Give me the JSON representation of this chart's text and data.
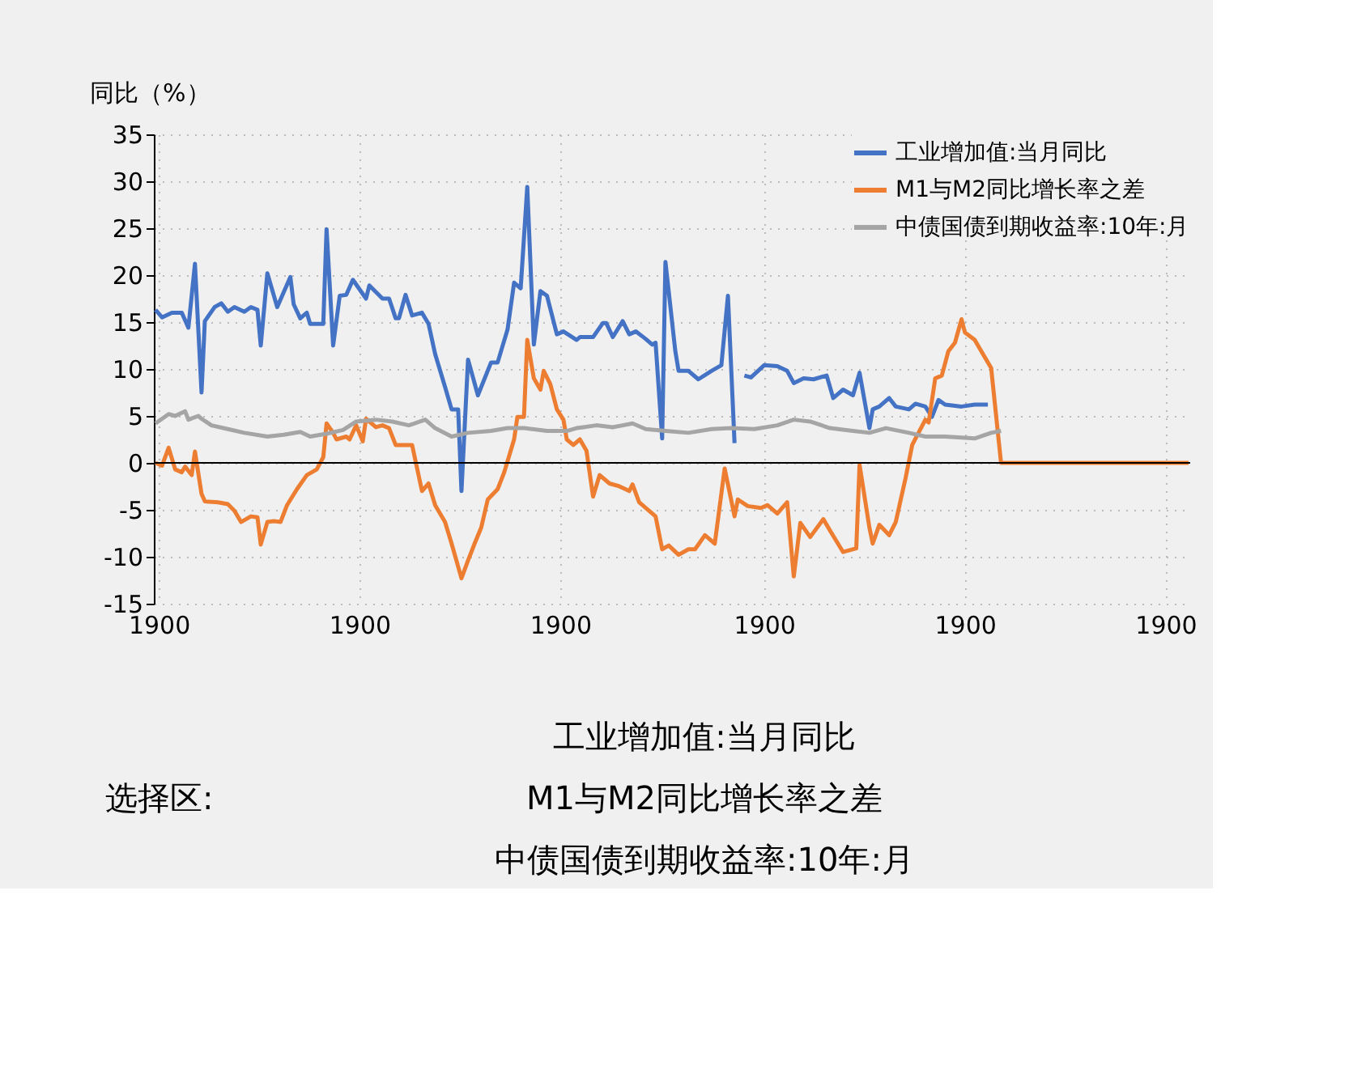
{
  "chart_data": {
    "type": "line",
    "ylabel": "同比（%）",
    "xlim": [
      "1899-12-30T12:00",
      "1900-11-10T12:00"
    ],
    "xticks": [
      {
        "value": "1900-01-01",
        "label": "1900"
      },
      {
        "value": "1900-03-03",
        "label": "1900"
      },
      {
        "value": "1900-05-03",
        "label": "1900"
      },
      {
        "value": "1900-07-04",
        "label": "1900"
      },
      {
        "value": "1900-09-03",
        "label": "1900"
      },
      {
        "value": "1900-11-03",
        "label": "1900"
      }
    ],
    "ylim": [
      -15,
      35
    ],
    "yticks": [
      -15,
      -10,
      -5,
      0,
      5,
      10,
      15,
      20,
      25,
      30,
      35
    ],
    "grid": true,
    "legend": "top right",
    "line_style": "solid",
    "marker": "none",
    "series": [
      {
        "name": "工业增加值:当月同比",
        "color": "#4472c4",
        "x": [
          "1899-12-31",
          "1900-01-02",
          "1900-01-05",
          "1900-01-08",
          "1900-01-10",
          "1900-01-12",
          "1900-01-14",
          "1900-01-15",
          "1900-01-18",
          "1900-01-20",
          "1900-01-22",
          "1900-01-24",
          "1900-01-27",
          "1900-01-29",
          "1900-01-31",
          "1900-02-01",
          "1900-02-03",
          "1900-02-06",
          "1900-02-10",
          "1900-02-11",
          "1900-02-13",
          "1900-02-15",
          "1900-02-16",
          "1900-02-20",
          "1900-02-21",
          "1900-02-23",
          "1900-02-25",
          "1900-02-27",
          "1900-03-01",
          "1900-03-05",
          "1900-03-06",
          "1900-03-10",
          "1900-03-12",
          "1900-03-14",
          "1900-03-15",
          "1900-03-17",
          "1900-03-19",
          "1900-03-22",
          "1900-03-24",
          "1900-03-26",
          "1900-03-29",
          "1900-03-31",
          "1900-04-02",
          "1900-04-03",
          "1900-04-05",
          "1900-04-08",
          "1900-04-12",
          "1900-04-14",
          "1900-04-17",
          "1900-04-19",
          "1900-04-21",
          "1900-04-23",
          "1900-04-25",
          "1900-04-27",
          "1900-04-29",
          "1900-05-02",
          "1900-05-04",
          "1900-05-08",
          "1900-05-09",
          "1900-05-13",
          "1900-05-16",
          "1900-05-17",
          "1900-05-19",
          "1900-05-22",
          "1900-05-24",
          "1900-05-26",
          "1900-05-29",
          "1900-05-31",
          "1900-06-01",
          "1900-06-03",
          "1900-06-04",
          "1900-06-07",
          "1900-06-08",
          "1900-06-11",
          "1900-06-14",
          "1900-06-18",
          "1900-06-21",
          "1900-06-23",
          "1900-06-25",
          "1900-06-26",
          "1900-06-28",
          "1900-06-30",
          "1900-07-04",
          "1900-07-08",
          "1900-07-11",
          "1900-07-13",
          "1900-07-16",
          "1900-07-19",
          "1900-07-23",
          "1900-07-25",
          "1900-07-28",
          "1900-07-31",
          "1900-08-02",
          "1900-08-05",
          "1900-08-06",
          "1900-08-08",
          "1900-08-11",
          "1900-08-13",
          "1900-08-17",
          "1900-08-19",
          "1900-08-22",
          "1900-08-24",
          "1900-08-26",
          "1900-08-28",
          "1900-09-02",
          "1900-09-06",
          "1900-09-10"
        ],
        "values": [
          16.3,
          15.5,
          16,
          16,
          14.4,
          21.2,
          7.5,
          15.1,
          16.6,
          17,
          16.1,
          16.6,
          16.1,
          16.6,
          16.3,
          12.5,
          20.2,
          16.6,
          19.8,
          16.9,
          15.4,
          16,
          14.8,
          14.8,
          24.9,
          12.5,
          17.8,
          17.9,
          19.5,
          17.5,
          18.9,
          17.5,
          17.5,
          15.4,
          15.4,
          17.9,
          15.7,
          16,
          14.8,
          11.6,
          8.1,
          5.7,
          5.7,
          -3,
          11,
          7.2,
          10.7,
          10.7,
          14.2,
          19.2,
          18.6,
          29.4,
          12.6,
          18.3,
          17.8,
          13.7,
          14,
          13.1,
          13.4,
          13.4,
          14.9,
          14.9,
          13.4,
          15.1,
          13.7,
          14,
          13.2,
          12.6,
          12.8,
          2.6,
          21.4,
          11.9,
          9.8,
          9.8,
          8.9,
          9.8,
          10.4,
          17.8,
          2.1,
          null,
          9.3,
          9.1,
          10.4,
          10.3,
          9.8,
          8.5,
          9,
          8.9,
          9.3,
          6.9,
          7.8,
          7.2,
          9.6,
          3.7,
          5.7,
          6,
          6.9,
          6,
          5.7,
          6.3,
          6,
          4.9,
          6.7,
          6.2,
          6,
          6.2,
          6.2
        ]
      },
      {
        "name": "M1与M2同比增长率之差",
        "color": "#ed7d31",
        "x": [
          "1899-12-31",
          "1900-01-02",
          "1900-01-04",
          "1900-01-06",
          "1900-01-08",
          "1900-01-09",
          "1900-01-11",
          "1900-01-12",
          "1900-01-14",
          "1900-01-15",
          "1900-01-19",
          "1900-01-22",
          "1900-01-24",
          "1900-01-26",
          "1900-01-29",
          "1900-01-31",
          "1900-02-01",
          "1900-02-03",
          "1900-02-05",
          "1900-02-07",
          "1900-02-09",
          "1900-02-12",
          "1900-02-15",
          "1900-02-18",
          "1900-02-20",
          "1900-02-21",
          "1900-02-23",
          "1900-02-24",
          "1900-02-27",
          "1900-02-28",
          "1900-03-02",
          "1900-03-04",
          "1900-03-05",
          "1900-03-08",
          "1900-03-10",
          "1900-03-12",
          "1900-03-14",
          "1900-03-16",
          "1900-03-19",
          "1900-03-22",
          "1900-03-24",
          "1900-03-26",
          "1900-03-29",
          "1900-03-31",
          "1900-04-03",
          "1900-04-05",
          "1900-04-07",
          "1900-04-09",
          "1900-04-11",
          "1900-04-14",
          "1900-04-16",
          "1900-04-19",
          "1900-04-20",
          "1900-04-22",
          "1900-04-23",
          "1900-04-25",
          "1900-04-27",
          "1900-04-28",
          "1900-04-30",
          "1900-05-02",
          "1900-05-04",
          "1900-05-05",
          "1900-05-07",
          "1900-05-09",
          "1900-05-11",
          "1900-05-13",
          "1900-05-15",
          "1900-05-18",
          "1900-05-21",
          "1900-05-24",
          "1900-05-25",
          "1900-05-27",
          "1900-05-29",
          "1900-06-01",
          "1900-06-03",
          "1900-06-05",
          "1900-06-08",
          "1900-06-11",
          "1900-06-13",
          "1900-06-16",
          "1900-06-19",
          "1900-06-22",
          "1900-06-25",
          "1900-06-26",
          "1900-06-29",
          "1900-07-03",
          "1900-07-05",
          "1900-07-08",
          "1900-07-11",
          "1900-07-13",
          "1900-07-15",
          "1900-07-18",
          "1900-07-22",
          "1900-07-24",
          "1900-07-28",
          "1900-08-01",
          "1900-08-02",
          "1900-08-05",
          "1900-08-06",
          "1900-08-08",
          "1900-08-11",
          "1900-08-13",
          "1900-08-16",
          "1900-08-18",
          "1900-08-22",
          "1900-08-23",
          "1900-08-25",
          "1900-08-27",
          "1900-08-29",
          "1900-08-31",
          "1900-09-02",
          "1900-09-03",
          "1900-09-06",
          "1900-09-08",
          "1900-09-11",
          "1900-09-14",
          "1900-11-10"
        ],
        "values": [
          0,
          -0.3,
          1.6,
          -0.7,
          -1,
          -0.4,
          -1.3,
          1.2,
          -3.3,
          -4.1,
          -4.2,
          -4.4,
          -5.1,
          -6.3,
          -5.7,
          -5.8,
          -8.7,
          -6.3,
          -6.2,
          -6.3,
          -4.5,
          -2.8,
          -1.3,
          -0.7,
          0.6,
          4.2,
          3.2,
          2.5,
          2.8,
          2.5,
          4,
          2.3,
          4.7,
          3.8,
          4,
          3.7,
          1.9,
          1.9,
          1.9,
          -3,
          -2.2,
          -4.5,
          -6.3,
          -8.6,
          -12.3,
          -10.4,
          -8.6,
          -6.9,
          -3.9,
          -2.8,
          -1,
          2.5,
          4.9,
          4.9,
          13.1,
          9,
          7.8,
          9.8,
          8.4,
          5.7,
          4.6,
          2.5,
          1.9,
          2.5,
          1.3,
          -3.6,
          -1.3,
          -2.2,
          -2.5,
          -3,
          -2.3,
          -4.2,
          -4.8,
          -5.7,
          -9.2,
          -8.8,
          -9.8,
          -9.2,
          -9.2,
          -7.7,
          -8.6,
          -0.6,
          -5.7,
          -3.9,
          -4.6,
          -4.8,
          -4.5,
          -5.4,
          -4.2,
          -12.1,
          -6.4,
          -7.9,
          -6,
          -7.2,
          -9.5,
          -9.1,
          -0.2,
          -6.9,
          -8.6,
          -6.6,
          -7.7,
          -6.3,
          -1.6,
          1.9,
          4.6,
          4.3,
          9,
          9.3,
          11.9,
          12.8,
          15.3,
          13.9,
          13.1,
          11.9,
          10.1,
          0,
          0
        ]
      },
      {
        "name": "中债国债到期收益率:10年:月",
        "color": "#a5a5a5",
        "x": [
          "1899-12-31",
          "1900-01-04",
          "1900-01-06",
          "1900-01-09",
          "1900-01-10",
          "1900-01-13",
          "1900-01-14",
          "1900-01-17",
          "1900-01-22",
          "1900-01-27",
          "1900-02-03",
          "1900-02-08",
          "1900-02-13",
          "1900-02-16",
          "1900-02-21",
          "1900-02-26",
          "1900-03-02",
          "1900-03-08",
          "1900-03-13",
          "1900-03-18",
          "1900-03-23",
          "1900-03-26",
          "1900-03-31",
          "1900-04-05",
          "1900-04-12",
          "1900-04-17",
          "1900-04-22",
          "1900-04-29",
          "1900-05-05",
          "1900-05-08",
          "1900-05-10",
          "1900-05-14",
          "1900-05-19",
          "1900-05-25",
          "1900-05-29",
          "1900-06-04",
          "1900-06-11",
          "1900-06-18",
          "1900-06-24",
          "1900-07-01",
          "1900-07-08",
          "1900-07-13",
          "1900-07-18",
          "1900-07-24",
          "1900-07-31",
          "1900-08-05",
          "1900-08-10",
          "1900-08-17",
          "1900-08-22",
          "1900-08-28",
          "1900-09-06",
          "1900-09-11",
          "1900-09-14"
        ],
        "values": [
          4.2,
          5.2,
          5,
          5.5,
          4.6,
          5,
          4.7,
          4,
          3.6,
          3.2,
          2.8,
          3,
          3.3,
          2.8,
          3.1,
          3.5,
          4.4,
          4.6,
          4.4,
          4,
          4.6,
          3.7,
          2.8,
          3.2,
          3.4,
          3.7,
          3.7,
          3.4,
          3.4,
          3.7,
          3.8,
          4,
          3.8,
          4.2,
          3.6,
          3.4,
          3.2,
          3.6,
          3.7,
          3.6,
          4,
          4.6,
          4.4,
          3.7,
          3.4,
          3.2,
          3.7,
          3.2,
          2.8,
          2.8,
          2.6,
          3.2,
          3.4
        ]
      }
    ],
    "annotations": [
      "选择区:",
      "工业增加值:当月同比",
      "M1与M2同比增长率之差",
      "中债国债到期收益率:10年:月"
    ]
  }
}
